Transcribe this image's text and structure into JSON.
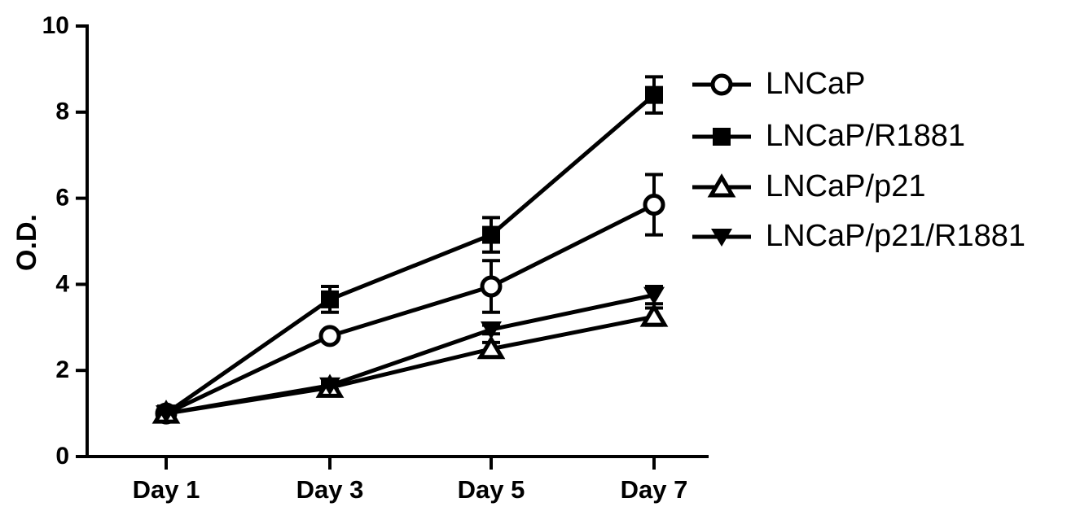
{
  "chart_data": {
    "type": "line",
    "title": "",
    "xlabel": "",
    "ylabel": "O.D.",
    "categories": [
      "Day 1",
      "Day 3",
      "Day 5",
      "Day 7"
    ],
    "ylim": [
      0,
      10
    ],
    "yticks": [
      "0",
      "2",
      "4",
      "6",
      "8",
      "10"
    ],
    "grid": false,
    "legend": "right",
    "series": [
      {
        "name": "LNCaP",
        "marker": "circle-open",
        "values": [
          1.0,
          2.8,
          3.95,
          5.85
        ],
        "errors": [
          0.05,
          0.1,
          0.6,
          0.7
        ]
      },
      {
        "name": "LNCaP/R1881",
        "marker": "square-filled",
        "values": [
          1.0,
          3.65,
          5.15,
          8.4
        ],
        "errors": [
          0.05,
          0.3,
          0.4,
          0.42
        ]
      },
      {
        "name": "LNCaP/p21",
        "marker": "triangle-up-open",
        "values": [
          1.0,
          1.6,
          2.5,
          3.25
        ],
        "errors": [
          0.05,
          0.1,
          0.15,
          0.2
        ]
      },
      {
        "name": "LNCaP/p21/R1881",
        "marker": "triangle-down-filled",
        "values": [
          1.0,
          1.65,
          2.95,
          3.75
        ],
        "errors": [
          0.05,
          0.1,
          0.1,
          0.2
        ]
      }
    ]
  }
}
